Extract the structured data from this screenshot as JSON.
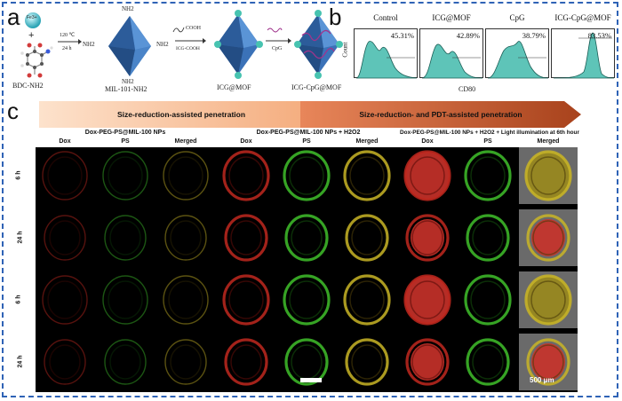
{
  "panels": {
    "a": "a",
    "b": "b",
    "c": "c"
  },
  "panel_a": {
    "fe_label": "Fe3+",
    "reaction1": {
      "temp": "120 ℃",
      "time": "24 h"
    },
    "reaction2": {
      "reagent": "COOH",
      "name": "ICG-COOH"
    },
    "reaction3": {
      "name": "CpG"
    },
    "nh2": "NH2",
    "labels": [
      "BDC-NH2",
      "MIL-101-NH2",
      "ICG@MOF",
      "ICG-CpG@MOF"
    ]
  },
  "panel_b": {
    "xlabel": "CD80",
    "ylabel": "Count",
    "hists": [
      {
        "title": "Control",
        "percent": "45.31%"
      },
      {
        "title": "ICG@MOF",
        "percent": "42.89%"
      },
      {
        "title": "CpG",
        "percent": "38.79%"
      },
      {
        "title": "ICG-CpG@MOF",
        "percent": "83.53%"
      }
    ]
  },
  "panel_c": {
    "arrow1": "Size-reduction-assisted penetration",
    "arrow2": "Size-reduction- and PDT-assisted penetration",
    "groups": [
      "Dox-PEG-PS@MIL-100 NPs",
      "Dox-PEG-PS@MIL-100 NPs + H2O2",
      "Dox-PEG-PS@MIL-100 NPs + H2O2 + Light illumination at 6th hour"
    ],
    "columns": [
      "Dox",
      "PS",
      "Merged",
      "Dox",
      "PS",
      "Merged",
      "Dox",
      "PS",
      "Merged"
    ],
    "rows": [
      "6 h",
      "24 h",
      "6 h",
      "24 h"
    ],
    "scalebar": "500 μm"
  },
  "colors": {
    "frame": "#2f63b6",
    "hist_fill": "#5ec4b8",
    "arrow_light": "#f7c7a2",
    "arrow_dark": "#a8421c"
  }
}
